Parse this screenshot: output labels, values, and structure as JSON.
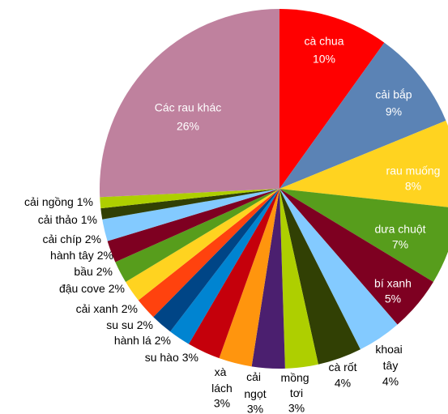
{
  "chart_data": {
    "type": "pie",
    "categories": [
      "cà chua",
      "cải bắp",
      "rau muống",
      "dưa chuột",
      "bí xanh",
      "khoai tây",
      "cà rốt",
      "mồng tơi",
      "cải ngọt",
      "xà lách",
      "su hào",
      "hành lá",
      "su su",
      "cải xanh",
      "đậu cove",
      "bầu",
      "hành tây",
      "cải chíp",
      "cải thảo",
      "cải ngồng",
      "Các rau khác"
    ],
    "values": [
      10,
      9,
      8,
      7,
      5,
      4,
      4,
      3,
      3,
      3,
      3,
      2,
      2,
      2,
      2,
      2,
      2,
      2,
      1,
      1,
      26
    ],
    "value_labels": [
      "10%",
      "9%",
      "8%",
      "7%",
      "5%",
      "4%",
      "4%",
      "3%",
      "3%",
      "3%",
      "3%",
      "2%",
      "2%",
      "2%",
      "2%",
      "2%",
      "2%",
      "2%",
      "1%",
      "1%",
      "26%"
    ],
    "colors": [
      "#ff0000",
      "#5b83b5",
      "#ffd320",
      "#579d1c",
      "#7e0021",
      "#83caff",
      "#314004",
      "#aecf00",
      "#4b1f6f",
      "#ff950e",
      "#c5000b",
      "#0084d1",
      "#004586",
      "#ff420e",
      "#ffd320",
      "#579d1c",
      "#7e0021",
      "#83caff",
      "#314004",
      "#aecf00",
      "#bf819e"
    ]
  }
}
